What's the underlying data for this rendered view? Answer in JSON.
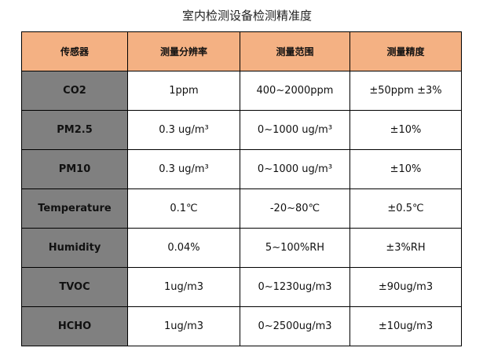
{
  "title": "室内检测设备检测精准度",
  "table": {
    "header": [
      "传感器",
      "测量分辨率",
      "测量范围",
      "测量精度"
    ],
    "rows": [
      [
        "CO2",
        "1ppm",
        "400~2000ppm",
        "±50ppm ±3%"
      ],
      [
        "PM2.5",
        "0.3 ug/m³",
        "0~1000 ug/m³",
        "±10%"
      ],
      [
        "PM10",
        "0.3 ug/m³",
        "0~1000 ug/m³",
        "±10%"
      ],
      [
        "Temperature",
        "0.1℃",
        "-20~80℃",
        "±0.5℃"
      ],
      [
        "Humidity",
        "0.04%",
        "5~100%RH",
        "±3%RH"
      ],
      [
        "TVOC",
        "1ug/m3",
        "0~1230ug/m3",
        "±90ug/m3"
      ],
      [
        "HCHO",
        "1ug/m3",
        "0~2500ug/m3",
        "±10ug/m3"
      ]
    ]
  }
}
